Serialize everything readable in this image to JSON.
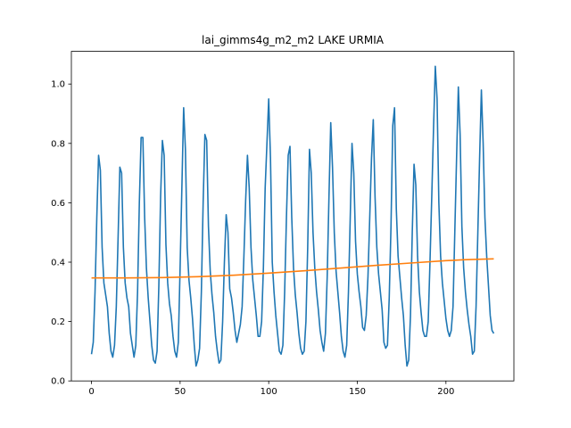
{
  "chart_data": {
    "type": "line",
    "title": "lai_gimms4g_m2_m2 LAKE URMIA",
    "xlabel": "",
    "ylabel": "",
    "xlim": [
      -11.35,
      238.35
    ],
    "ylim": [
      0.0,
      1.11
    ],
    "xticks": [
      0,
      50,
      100,
      150,
      200
    ],
    "yticks": [
      0.0,
      0.2,
      0.4,
      0.6,
      0.8,
      1.0
    ],
    "xtick_labels": [
      "0",
      "50",
      "100",
      "150",
      "200"
    ],
    "ytick_labels": [
      "0.0",
      "0.2",
      "0.4",
      "0.6",
      "0.8",
      "1.0"
    ],
    "grid": false,
    "legend": "none",
    "series": [
      {
        "color": "#1f77b4",
        "points": [
          [
            0,
            0.09
          ],
          [
            1,
            0.13
          ],
          [
            2,
            0.3
          ],
          [
            3,
            0.55
          ],
          [
            4,
            0.76
          ],
          [
            5,
            0.71
          ],
          [
            6,
            0.45
          ],
          [
            7,
            0.33
          ],
          [
            8,
            0.29
          ],
          [
            9,
            0.25
          ],
          [
            10,
            0.16
          ],
          [
            11,
            0.1
          ],
          [
            12,
            0.08
          ],
          [
            13,
            0.12
          ],
          [
            14,
            0.25
          ],
          [
            15,
            0.48
          ],
          [
            16,
            0.72
          ],
          [
            17,
            0.7
          ],
          [
            18,
            0.45
          ],
          [
            19,
            0.33
          ],
          [
            20,
            0.28
          ],
          [
            21,
            0.25
          ],
          [
            22,
            0.16
          ],
          [
            23,
            0.12
          ],
          [
            24,
            0.08
          ],
          [
            25,
            0.12
          ],
          [
            26,
            0.3
          ],
          [
            27,
            0.6
          ],
          [
            28,
            0.82
          ],
          [
            29,
            0.82
          ],
          [
            30,
            0.55
          ],
          [
            31,
            0.38
          ],
          [
            32,
            0.28
          ],
          [
            33,
            0.2
          ],
          [
            34,
            0.12
          ],
          [
            35,
            0.07
          ],
          [
            36,
            0.06
          ],
          [
            37,
            0.1
          ],
          [
            38,
            0.32
          ],
          [
            39,
            0.62
          ],
          [
            40,
            0.81
          ],
          [
            41,
            0.76
          ],
          [
            42,
            0.46
          ],
          [
            43,
            0.33
          ],
          [
            44,
            0.26
          ],
          [
            45,
            0.22
          ],
          [
            46,
            0.15
          ],
          [
            47,
            0.1
          ],
          [
            48,
            0.08
          ],
          [
            49,
            0.13
          ],
          [
            50,
            0.38
          ],
          [
            51,
            0.65
          ],
          [
            52,
            0.92
          ],
          [
            53,
            0.78
          ],
          [
            54,
            0.45
          ],
          [
            55,
            0.34
          ],
          [
            56,
            0.28
          ],
          [
            57,
            0.21
          ],
          [
            58,
            0.12
          ],
          [
            59,
            0.05
          ],
          [
            60,
            0.07
          ],
          [
            61,
            0.11
          ],
          [
            62,
            0.3
          ],
          [
            63,
            0.6
          ],
          [
            64,
            0.83
          ],
          [
            65,
            0.81
          ],
          [
            66,
            0.52
          ],
          [
            67,
            0.37
          ],
          [
            68,
            0.29
          ],
          [
            69,
            0.23
          ],
          [
            70,
            0.15
          ],
          [
            71,
            0.1
          ],
          [
            72,
            0.06
          ],
          [
            73,
            0.07
          ],
          [
            74,
            0.2
          ],
          [
            75,
            0.4
          ],
          [
            76,
            0.56
          ],
          [
            77,
            0.5
          ],
          [
            78,
            0.31
          ],
          [
            79,
            0.28
          ],
          [
            80,
            0.23
          ],
          [
            81,
            0.17
          ],
          [
            82,
            0.13
          ],
          [
            83,
            0.16
          ],
          [
            84,
            0.19
          ],
          [
            85,
            0.25
          ],
          [
            86,
            0.42
          ],
          [
            87,
            0.61
          ],
          [
            88,
            0.76
          ],
          [
            89,
            0.65
          ],
          [
            90,
            0.45
          ],
          [
            91,
            0.34
          ],
          [
            92,
            0.28
          ],
          [
            93,
            0.22
          ],
          [
            94,
            0.15
          ],
          [
            95,
            0.15
          ],
          [
            96,
            0.2
          ],
          [
            97,
            0.38
          ],
          [
            98,
            0.65
          ],
          [
            99,
            0.8
          ],
          [
            100,
            0.95
          ],
          [
            101,
            0.75
          ],
          [
            102,
            0.4
          ],
          [
            103,
            0.3
          ],
          [
            104,
            0.22
          ],
          [
            105,
            0.16
          ],
          [
            106,
            0.1
          ],
          [
            107,
            0.09
          ],
          [
            108,
            0.12
          ],
          [
            109,
            0.3
          ],
          [
            110,
            0.55
          ],
          [
            111,
            0.76
          ],
          [
            112,
            0.79
          ],
          [
            113,
            0.55
          ],
          [
            114,
            0.38
          ],
          [
            115,
            0.29
          ],
          [
            116,
            0.23
          ],
          [
            117,
            0.16
          ],
          [
            118,
            0.11
          ],
          [
            119,
            0.09
          ],
          [
            120,
            0.1
          ],
          [
            121,
            0.2
          ],
          [
            122,
            0.45
          ],
          [
            123,
            0.78
          ],
          [
            124,
            0.7
          ],
          [
            125,
            0.5
          ],
          [
            126,
            0.38
          ],
          [
            127,
            0.3
          ],
          [
            128,
            0.24
          ],
          [
            129,
            0.17
          ],
          [
            130,
            0.13
          ],
          [
            131,
            0.1
          ],
          [
            132,
            0.16
          ],
          [
            133,
            0.35
          ],
          [
            134,
            0.62
          ],
          [
            135,
            0.87
          ],
          [
            136,
            0.72
          ],
          [
            137,
            0.5
          ],
          [
            138,
            0.37
          ],
          [
            139,
            0.3
          ],
          [
            140,
            0.23
          ],
          [
            141,
            0.15
          ],
          [
            142,
            0.1
          ],
          [
            143,
            0.08
          ],
          [
            144,
            0.12
          ],
          [
            145,
            0.3
          ],
          [
            146,
            0.55
          ],
          [
            147,
            0.8
          ],
          [
            148,
            0.7
          ],
          [
            149,
            0.47
          ],
          [
            150,
            0.36
          ],
          [
            151,
            0.3
          ],
          [
            152,
            0.25
          ],
          [
            153,
            0.18
          ],
          [
            154,
            0.17
          ],
          [
            155,
            0.22
          ],
          [
            156,
            0.35
          ],
          [
            157,
            0.55
          ],
          [
            158,
            0.75
          ],
          [
            159,
            0.88
          ],
          [
            160,
            0.62
          ],
          [
            161,
            0.45
          ],
          [
            162,
            0.36
          ],
          [
            163,
            0.3
          ],
          [
            164,
            0.24
          ],
          [
            165,
            0.13
          ],
          [
            166,
            0.11
          ],
          [
            167,
            0.12
          ],
          [
            168,
            0.28
          ],
          [
            169,
            0.52
          ],
          [
            170,
            0.86
          ],
          [
            171,
            0.92
          ],
          [
            172,
            0.58
          ],
          [
            173,
            0.42
          ],
          [
            174,
            0.35
          ],
          [
            175,
            0.28
          ],
          [
            176,
            0.22
          ],
          [
            177,
            0.12
          ],
          [
            178,
            0.05
          ],
          [
            179,
            0.07
          ],
          [
            180,
            0.22
          ],
          [
            181,
            0.5
          ],
          [
            182,
            0.73
          ],
          [
            183,
            0.66
          ],
          [
            184,
            0.42
          ],
          [
            185,
            0.3
          ],
          [
            186,
            0.23
          ],
          [
            187,
            0.17
          ],
          [
            188,
            0.15
          ],
          [
            189,
            0.15
          ],
          [
            190,
            0.2
          ],
          [
            191,
            0.4
          ],
          [
            192,
            0.62
          ],
          [
            193,
            0.85
          ],
          [
            194,
            1.06
          ],
          [
            195,
            0.95
          ],
          [
            196,
            0.6
          ],
          [
            197,
            0.42
          ],
          [
            198,
            0.33
          ],
          [
            199,
            0.27
          ],
          [
            200,
            0.21
          ],
          [
            201,
            0.17
          ],
          [
            202,
            0.15
          ],
          [
            203,
            0.17
          ],
          [
            204,
            0.25
          ],
          [
            205,
            0.5
          ],
          [
            206,
            0.75
          ],
          [
            207,
            0.99
          ],
          [
            208,
            0.83
          ],
          [
            209,
            0.52
          ],
          [
            210,
            0.38
          ],
          [
            211,
            0.3
          ],
          [
            212,
            0.24
          ],
          [
            213,
            0.19
          ],
          [
            214,
            0.15
          ],
          [
            215,
            0.09
          ],
          [
            216,
            0.1
          ],
          [
            217,
            0.25
          ],
          [
            218,
            0.5
          ],
          [
            219,
            0.75
          ],
          [
            220,
            0.98
          ],
          [
            221,
            0.8
          ],
          [
            222,
            0.55
          ],
          [
            223,
            0.42
          ],
          [
            224,
            0.32
          ],
          [
            225,
            0.22
          ],
          [
            226,
            0.17
          ],
          [
            227,
            0.16
          ]
        ]
      },
      {
        "color": "#ff7f0e",
        "points": [
          [
            0,
            0.347
          ],
          [
            20,
            0.347
          ],
          [
            40,
            0.348
          ],
          [
            60,
            0.351
          ],
          [
            80,
            0.356
          ],
          [
            100,
            0.363
          ],
          [
            120,
            0.371
          ],
          [
            140,
            0.38
          ],
          [
            160,
            0.389
          ],
          [
            180,
            0.397
          ],
          [
            200,
            0.405
          ],
          [
            210,
            0.408
          ],
          [
            220,
            0.41
          ],
          [
            227,
            0.411
          ]
        ]
      }
    ]
  }
}
